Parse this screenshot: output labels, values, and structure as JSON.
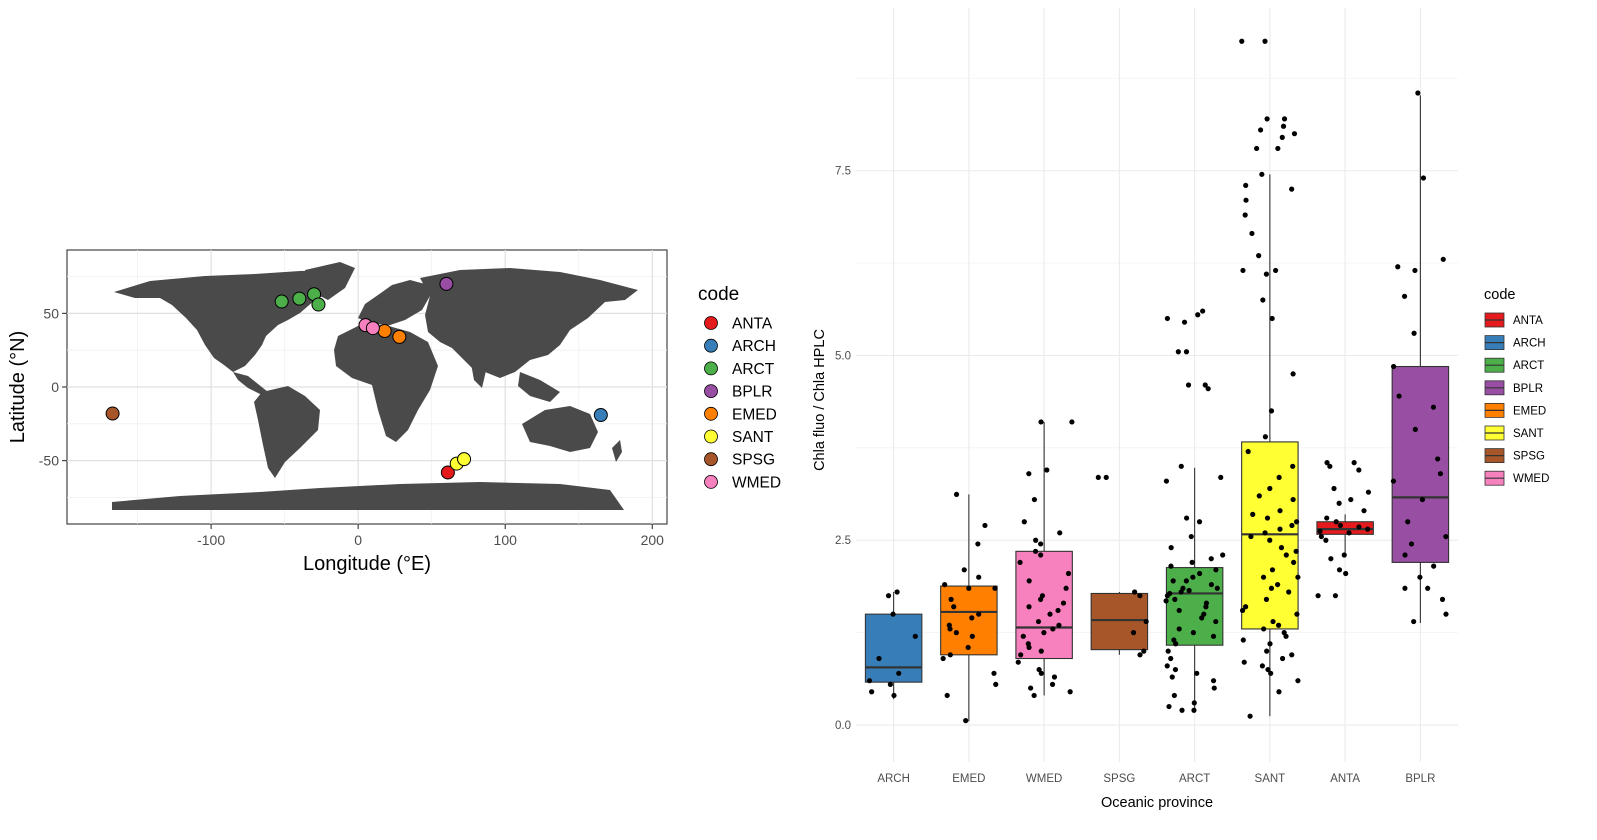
{
  "chart_data": [
    {
      "type": "scatter",
      "subtype": "world-map",
      "xlabel": "Longitude (°E)",
      "ylabel": "Latitude (°N)",
      "xlim": [
        -198,
        210
      ],
      "ylim": [
        -93,
        93
      ],
      "xticks": [
        -100,
        0,
        100,
        200
      ],
      "yticks": [
        -50,
        0,
        50
      ],
      "xtick_labels": [
        "-100",
        "0",
        "100",
        "200"
      ],
      "ytick_labels": [
        "-50",
        "0",
        "50"
      ],
      "grid": true,
      "legend_title": "code",
      "legend_position": "right",
      "legend": [
        {
          "label": "ANTA",
          "color": "#e41a1c"
        },
        {
          "label": "ARCH",
          "color": "#377eb8"
        },
        {
          "label": "ARCT",
          "color": "#4daf4a"
        },
        {
          "label": "BPLR",
          "color": "#984ea3"
        },
        {
          "label": "EMED",
          "color": "#ff7f00"
        },
        {
          "label": "SANT",
          "color": "#ffff33"
        },
        {
          "label": "SPSG",
          "color": "#a65628"
        },
        {
          "label": "WMED",
          "color": "#f781bf"
        }
      ],
      "points": [
        {
          "code": "ANTA",
          "lon": 61,
          "lat": -58
        },
        {
          "code": "ARCH",
          "lon": 165,
          "lat": -19
        },
        {
          "code": "ARCT",
          "lon": -52,
          "lat": 58
        },
        {
          "code": "ARCT",
          "lon": -40,
          "lat": 60
        },
        {
          "code": "ARCT",
          "lon": -30,
          "lat": 63
        },
        {
          "code": "ARCT",
          "lon": -27,
          "lat": 56
        },
        {
          "code": "BPLR",
          "lon": 60,
          "lat": 70
        },
        {
          "code": "EMED",
          "lon": 18,
          "lat": 38
        },
        {
          "code": "EMED",
          "lon": 28,
          "lat": 34
        },
        {
          "code": "SANT",
          "lon": 67,
          "lat": -52
        },
        {
          "code": "SANT",
          "lon": 72,
          "lat": -49
        },
        {
          "code": "SPSG",
          "lon": -167,
          "lat": -18
        },
        {
          "code": "WMED",
          "lon": 5,
          "lat": 42
        },
        {
          "code": "WMED",
          "lon": 10,
          "lat": 40
        }
      ]
    },
    {
      "type": "box",
      "xlabel": "Oceanic province",
      "ylabel": "Chla fluo / Chla HPLC",
      "ylim": [
        -0.5,
        9.7
      ],
      "yticks": [
        0,
        2.5,
        5,
        7.5
      ],
      "ytick_labels": [
        "0.0",
        "2.5",
        "5.0",
        "7.5"
      ],
      "categories": [
        "ARCH",
        "EMED",
        "WMED",
        "SPSG",
        "ARCT",
        "SANT",
        "ANTA",
        "BPLR"
      ],
      "grid": true,
      "legend_title": "code",
      "legend_position": "right",
      "legend": [
        {
          "label": "ANTA",
          "color": "#e41a1c"
        },
        {
          "label": "ARCH",
          "color": "#377eb8"
        },
        {
          "label": "ARCT",
          "color": "#4daf4a"
        },
        {
          "label": "BPLR",
          "color": "#984ea3"
        },
        {
          "label": "EMED",
          "color": "#ff7f00"
        },
        {
          "label": "SANT",
          "color": "#ffff33"
        },
        {
          "label": "SPSG",
          "color": "#a65628"
        },
        {
          "label": "WMED",
          "color": "#f781bf"
        }
      ],
      "boxes": [
        {
          "category": "ARCH",
          "color": "#377eb8",
          "min": 0.35,
          "q1": 0.58,
          "median": 0.78,
          "q3": 1.5,
          "max": 1.8
        },
        {
          "category": "EMED",
          "color": "#ff7f00",
          "min": 0.05,
          "q1": 0.95,
          "median": 1.53,
          "q3": 1.88,
          "max": 3.12
        },
        {
          "category": "WMED",
          "color": "#f781bf",
          "min": 0.4,
          "q1": 0.9,
          "median": 1.32,
          "q3": 2.35,
          "max": 4.1
        },
        {
          "category": "SPSG",
          "color": "#a65628",
          "min": 0.95,
          "q1": 1.02,
          "median": 1.42,
          "q3": 1.78,
          "max": 1.8
        },
        {
          "category": "ARCT",
          "color": "#4daf4a",
          "min": 0.22,
          "q1": 1.08,
          "median": 1.78,
          "q3": 2.13,
          "max": 3.48
        },
        {
          "category": "SANT",
          "color": "#ffff33",
          "min": 0.12,
          "q1": 1.3,
          "median": 2.58,
          "q3": 3.83,
          "max": 7.45
        },
        {
          "category": "ANTA",
          "color": "#e41a1c",
          "min": 2.3,
          "q1": 2.58,
          "median": 2.65,
          "q3": 2.75,
          "max": 2.85
        },
        {
          "category": "BPLR",
          "color": "#984ea3",
          "min": 1.38,
          "q1": 2.2,
          "median": 3.08,
          "q3": 4.85,
          "max": 8.52
        }
      ],
      "points": [
        [
          1,
          1.5
        ],
        [
          1,
          1.8
        ],
        [
          1,
          0.45
        ],
        [
          1,
          0.9
        ],
        [
          1,
          0.55
        ],
        [
          1,
          0.4
        ],
        [
          1,
          0.6
        ],
        [
          1,
          1.2
        ],
        [
          1,
          0.7
        ],
        [
          1,
          1.75
        ],
        [
          2,
          3.12
        ],
        [
          2,
          2.7
        ],
        [
          2,
          2.45
        ],
        [
          2,
          1.9
        ],
        [
          2,
          1.85
        ],
        [
          2,
          1.6
        ],
        [
          2,
          1.5
        ],
        [
          2,
          1.35
        ],
        [
          2,
          1.2
        ],
        [
          2,
          1.05
        ],
        [
          2,
          0.95
        ],
        [
          2,
          0.9
        ],
        [
          2,
          0.7
        ],
        [
          2,
          0.55
        ],
        [
          2,
          0.4
        ],
        [
          2,
          0.06
        ],
        [
          2,
          1.85
        ],
        [
          2,
          1.7
        ],
        [
          2,
          2.1
        ],
        [
          2,
          1.45
        ],
        [
          2,
          2.0
        ],
        [
          2,
          1.25
        ],
        [
          2,
          1.3
        ],
        [
          3,
          4.1
        ],
        [
          3,
          4.1
        ],
        [
          3,
          3.4
        ],
        [
          3,
          3.45
        ],
        [
          3,
          3.05
        ],
        [
          3,
          2.75
        ],
        [
          3,
          2.6
        ],
        [
          3,
          2.5
        ],
        [
          3,
          2.35
        ],
        [
          3,
          2.2
        ],
        [
          3,
          2.05
        ],
        [
          3,
          1.95
        ],
        [
          3,
          1.85
        ],
        [
          3,
          1.75
        ],
        [
          3,
          1.6
        ],
        [
          3,
          1.5
        ],
        [
          3,
          1.4
        ],
        [
          3,
          1.35
        ],
        [
          3,
          1.3
        ],
        [
          3,
          1.2
        ],
        [
          3,
          1.1
        ],
        [
          3,
          1.0
        ],
        [
          3,
          0.95
        ],
        [
          3,
          0.85
        ],
        [
          3,
          0.75
        ],
        [
          3,
          0.65
        ],
        [
          3,
          0.55
        ],
        [
          3,
          0.45
        ],
        [
          3,
          0.4
        ],
        [
          3,
          1.7
        ],
        [
          3,
          1.25
        ],
        [
          3,
          2.45
        ],
        [
          3,
          1.65
        ],
        [
          3,
          0.7
        ],
        [
          3,
          2.3
        ],
        [
          3,
          0.5
        ],
        [
          3,
          1.05
        ],
        [
          3,
          1.55
        ],
        [
          4,
          3.35
        ],
        [
          4,
          3.35
        ],
        [
          4,
          1.8
        ],
        [
          4,
          1.75
        ],
        [
          4,
          1.4
        ],
        [
          4,
          1.0
        ],
        [
          4,
          0.95
        ],
        [
          4,
          1.25
        ],
        [
          5,
          5.6
        ],
        [
          5,
          5.55
        ],
        [
          5,
          5.5
        ],
        [
          5,
          5.45
        ],
        [
          5,
          5.05
        ],
        [
          5,
          5.05
        ],
        [
          5,
          4.6
        ],
        [
          5,
          4.6
        ],
        [
          5,
          4.55
        ],
        [
          5,
          3.5
        ],
        [
          5,
          3.35
        ],
        [
          5,
          3.3
        ],
        [
          5,
          2.8
        ],
        [
          5,
          2.75
        ],
        [
          5,
          2.55
        ],
        [
          5,
          2.4
        ],
        [
          5,
          2.3
        ],
        [
          5,
          2.2
        ],
        [
          5,
          2.1
        ],
        [
          5,
          2.05
        ],
        [
          5,
          2.0
        ],
        [
          5,
          1.95
        ],
        [
          5,
          1.9
        ],
        [
          5,
          1.85
        ],
        [
          5,
          1.8
        ],
        [
          5,
          1.75
        ],
        [
          5,
          1.7
        ],
        [
          5,
          1.65
        ],
        [
          5,
          1.6
        ],
        [
          5,
          1.5
        ],
        [
          5,
          1.4
        ],
        [
          5,
          1.3
        ],
        [
          5,
          1.2
        ],
        [
          5,
          1.1
        ],
        [
          5,
          1.0
        ],
        [
          5,
          0.9
        ],
        [
          5,
          0.8
        ],
        [
          5,
          0.7
        ],
        [
          5,
          0.6
        ],
        [
          5,
          0.5
        ],
        [
          5,
          0.4
        ],
        [
          5,
          0.3
        ],
        [
          5,
          0.25
        ],
        [
          5,
          0.2
        ],
        [
          5,
          0.2
        ],
        [
          5,
          1.78
        ],
        [
          5,
          1.95
        ],
        [
          5,
          1.55
        ],
        [
          5,
          1.85
        ],
        [
          5,
          2.25
        ],
        [
          5,
          1.15
        ],
        [
          5,
          0.75
        ],
        [
          5,
          1.68
        ],
        [
          5,
          1.45
        ],
        [
          5,
          2.15
        ],
        [
          5,
          1.82
        ],
        [
          5,
          0.65
        ],
        [
          5,
          1.25
        ],
        [
          6,
          9.25
        ],
        [
          6,
          9.25
        ],
        [
          6,
          8.2
        ],
        [
          6,
          8.2
        ],
        [
          6,
          8.1
        ],
        [
          6,
          8.05
        ],
        [
          6,
          8.0
        ],
        [
          6,
          7.95
        ],
        [
          6,
          7.8
        ],
        [
          6,
          7.8
        ],
        [
          6,
          7.45
        ],
        [
          6,
          7.3
        ],
        [
          6,
          7.25
        ],
        [
          6,
          7.1
        ],
        [
          6,
          6.9
        ],
        [
          6,
          6.65
        ],
        [
          6,
          6.35
        ],
        [
          6,
          6.15
        ],
        [
          6,
          6.15
        ],
        [
          6,
          6.1
        ],
        [
          6,
          5.75
        ],
        [
          6,
          5.5
        ],
        [
          6,
          4.75
        ],
        [
          6,
          4.25
        ],
        [
          6,
          3.9
        ],
        [
          6,
          3.7
        ],
        [
          6,
          3.5
        ],
        [
          6,
          3.35
        ],
        [
          6,
          3.2
        ],
        [
          6,
          3.05
        ],
        [
          6,
          2.9
        ],
        [
          6,
          2.8
        ],
        [
          6,
          2.75
        ],
        [
          6,
          2.7
        ],
        [
          6,
          2.6
        ],
        [
          6,
          2.5
        ],
        [
          6,
          2.4
        ],
        [
          6,
          2.3
        ],
        [
          6,
          2.2
        ],
        [
          6,
          2.1
        ],
        [
          6,
          2.0
        ],
        [
          6,
          1.9
        ],
        [
          6,
          1.8
        ],
        [
          6,
          1.7
        ],
        [
          6,
          1.6
        ],
        [
          6,
          1.5
        ],
        [
          6,
          1.4
        ],
        [
          6,
          1.35
        ],
        [
          6,
          1.3
        ],
        [
          6,
          1.25
        ],
        [
          6,
          1.2
        ],
        [
          6,
          1.1
        ],
        [
          6,
          1.0
        ],
        [
          6,
          0.95
        ],
        [
          6,
          0.9
        ],
        [
          6,
          0.85
        ],
        [
          6,
          0.8
        ],
        [
          6,
          0.75
        ],
        [
          6,
          0.6
        ],
        [
          6,
          0.45
        ],
        [
          6,
          0.12
        ],
        [
          6,
          2.65
        ],
        [
          6,
          2.55
        ],
        [
          6,
          2.85
        ],
        [
          6,
          1.85
        ],
        [
          6,
          3.1
        ],
        [
          6,
          1.55
        ],
        [
          6,
          2.35
        ],
        [
          6,
          0.7
        ],
        [
          6,
          1.15
        ],
        [
          6,
          2.0
        ],
        [
          7,
          3.55
        ],
        [
          7,
          3.55
        ],
        [
          7,
          3.5
        ],
        [
          7,
          3.45
        ],
        [
          7,
          3.2
        ],
        [
          7,
          3.15
        ],
        [
          7,
          3.05
        ],
        [
          7,
          3.0
        ],
        [
          7,
          2.9
        ],
        [
          7,
          2.8
        ],
        [
          7,
          2.75
        ],
        [
          7,
          2.7
        ],
        [
          7,
          2.65
        ],
        [
          7,
          2.6
        ],
        [
          7,
          2.55
        ],
        [
          7,
          2.5
        ],
        [
          7,
          2.3
        ],
        [
          7,
          2.25
        ],
        [
          7,
          2.1
        ],
        [
          7,
          2.05
        ],
        [
          7,
          1.75
        ],
        [
          7,
          1.75
        ],
        [
          7,
          2.62
        ],
        [
          7,
          2.68
        ],
        [
          8,
          8.55
        ],
        [
          8,
          7.4
        ],
        [
          8,
          6.3
        ],
        [
          8,
          6.2
        ],
        [
          8,
          6.15
        ],
        [
          8,
          5.8
        ],
        [
          8,
          5.3
        ],
        [
          8,
          4.85
        ],
        [
          8,
          4.45
        ],
        [
          8,
          4.3
        ],
        [
          8,
          3.4
        ],
        [
          8,
          3.3
        ],
        [
          8,
          3.05
        ],
        [
          8,
          2.75
        ],
        [
          8,
          2.45
        ],
        [
          8,
          2.3
        ],
        [
          8,
          2.15
        ],
        [
          8,
          2.0
        ],
        [
          8,
          1.85
        ],
        [
          8,
          1.85
        ],
        [
          8,
          1.7
        ],
        [
          8,
          1.5
        ],
        [
          8,
          1.4
        ],
        [
          8,
          2.55
        ],
        [
          8,
          3.6
        ],
        [
          8,
          4.0
        ]
      ]
    }
  ]
}
